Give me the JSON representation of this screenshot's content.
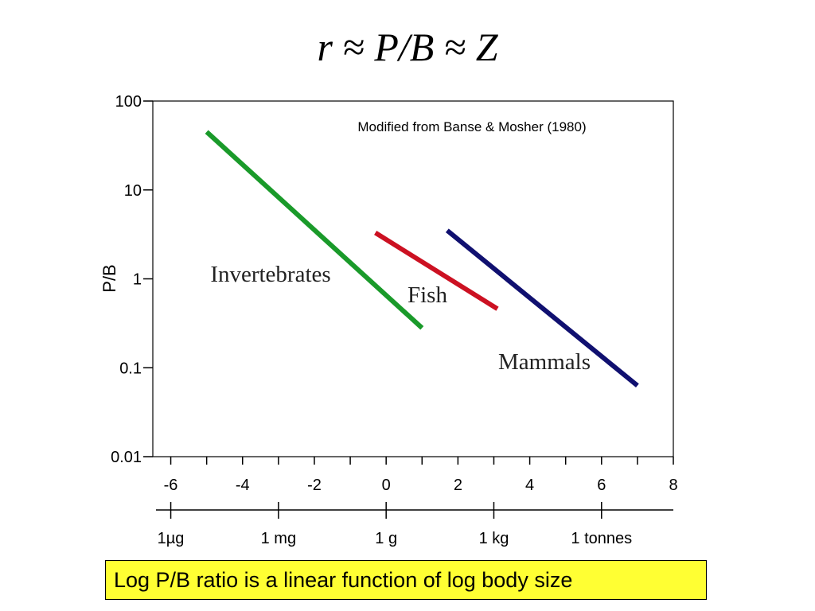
{
  "slide": {
    "title": "r ≈ P/B ≈ Z",
    "caption": "Log P/B ratio is a linear function of log body size"
  },
  "chart_data": {
    "type": "line",
    "ylabel": "P/B",
    "yscale": "log",
    "ylim": [
      0.01,
      100
    ],
    "y_ticks": [
      {
        "value": 100,
        "label": "100"
      },
      {
        "value": 10,
        "label": "10"
      },
      {
        "value": 1,
        "label": "1"
      },
      {
        "value": 0.1,
        "label": "0.1"
      },
      {
        "value": 0.01,
        "label": "0.01"
      }
    ],
    "xlim": [
      -6.5,
      8
    ],
    "x_ticks": [
      {
        "value": -6,
        "label": "-6"
      },
      {
        "value": -4,
        "label": "-4"
      },
      {
        "value": -2,
        "label": "-2"
      },
      {
        "value": 0,
        "label": "0"
      },
      {
        "value": 2,
        "label": "2"
      },
      {
        "value": 4,
        "label": "4"
      },
      {
        "value": 6,
        "label": "6"
      },
      {
        "value": 8,
        "label": "8"
      }
    ],
    "mass_axis": [
      {
        "value": -6,
        "label": "1µg"
      },
      {
        "value": -3,
        "label": "1 mg"
      },
      {
        "value": 0,
        "label": "1 g"
      },
      {
        "value": 3,
        "label": "1 kg"
      },
      {
        "value": 6,
        "label": "1 tonnes"
      }
    ],
    "annotation": "Modified from Banse & Mosher (1980)",
    "series": [
      {
        "name": "Invertebrates",
        "color": "#1a9a2a",
        "x": [
          -5,
          1
        ],
        "y": [
          45,
          0.28
        ]
      },
      {
        "name": "Fish",
        "color": "#cc1122",
        "x": [
          -0.3,
          3.1
        ],
        "y": [
          3.3,
          0.46
        ]
      },
      {
        "name": "Mammals",
        "color": "#101070",
        "x": [
          1.7,
          7
        ],
        "y": [
          3.5,
          0.063
        ]
      }
    ],
    "grid": false
  }
}
